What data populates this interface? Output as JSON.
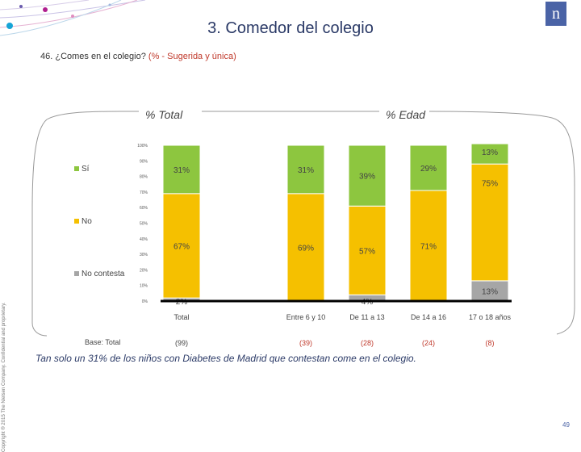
{
  "header": {
    "title": "3. Comedor del colegio",
    "question_prefix": "46. ¿Comes en el colegio?",
    "question_tag": "(% - Sugerida y única)",
    "logo_text": "n"
  },
  "sections": {
    "total": "% Total",
    "edad": "% Edad"
  },
  "legend": [
    {
      "label": "Sí",
      "color": "#8dc63f"
    },
    {
      "label": "No",
      "color": "#f5c000"
    },
    {
      "label": "No contesta",
      "color": "#a6a6a6"
    }
  ],
  "base": {
    "label": "Base: Total",
    "values": [
      "(99)",
      "(39)",
      "(28)",
      "(24)",
      "(8)"
    ]
  },
  "conclusion": "Tan solo un 31% de los niños con Diabetes de Madrid que contestan  come en el colegio.",
  "copyright": "Copyright ® 2015 The Nielsen Company. Confidential and proprietary.",
  "page_number": "49",
  "chart_data": {
    "type": "bar",
    "stacked": true,
    "categories": [
      "Total",
      "Entre 6 y 10",
      "De 11 a 13",
      "De 14 a 16",
      "17 o 18 años"
    ],
    "series": [
      {
        "name": "No contesta",
        "color": "#a6a6a6",
        "values": [
          2,
          0,
          4,
          0,
          13
        ],
        "labels": [
          "2%",
          "",
          "4%",
          "",
          "13%"
        ]
      },
      {
        "name": "No",
        "color": "#f5c000",
        "values": [
          67,
          69,
          57,
          71,
          75
        ],
        "labels": [
          "67%",
          "69%",
          "57%",
          "71%",
          "75%"
        ]
      },
      {
        "name": "Sí",
        "color": "#8dc63f",
        "values": [
          31,
          31,
          39,
          29,
          13
        ],
        "labels": [
          "31%",
          "31%",
          "39%",
          "29%",
          "13%"
        ]
      }
    ],
    "yticks": [
      "0%",
      "10%",
      "20%",
      "30%",
      "40%",
      "50%",
      "60%",
      "70%",
      "80%",
      "90%",
      "100%"
    ],
    "ylim": [
      0,
      100
    ]
  }
}
